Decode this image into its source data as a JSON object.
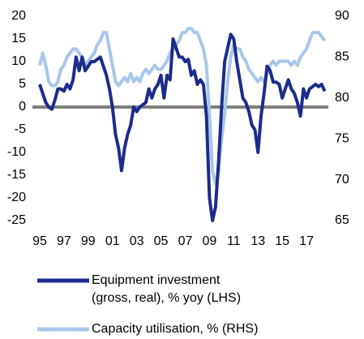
{
  "chart_data": {
    "type": "line",
    "x": [
      1995,
      1995.25,
      1995.5,
      1995.75,
      1996,
      1996.25,
      1996.5,
      1996.75,
      1997,
      1997.25,
      1997.5,
      1997.75,
      1998,
      1998.25,
      1998.5,
      1998.75,
      1999,
      1999.25,
      1999.5,
      1999.75,
      2000,
      2000.25,
      2000.5,
      2000.75,
      2001,
      2001.25,
      2001.5,
      2001.75,
      2002,
      2002.25,
      2002.5,
      2002.75,
      2003,
      2003.25,
      2003.5,
      2003.75,
      2004,
      2004.25,
      2004.5,
      2004.75,
      2005,
      2005.25,
      2005.5,
      2005.75,
      2006,
      2006.25,
      2006.5,
      2006.75,
      2007,
      2007.25,
      2007.5,
      2007.75,
      2008,
      2008.25,
      2008.5,
      2008.75,
      2009,
      2009.25,
      2009.5,
      2009.75,
      2010,
      2010.25,
      2010.5,
      2010.75,
      2011,
      2011.25,
      2011.5,
      2011.75,
      2012,
      2012.25,
      2012.5,
      2012.75,
      2013,
      2013.25,
      2013.5,
      2013.75,
      2014,
      2014.25,
      2014.5,
      2014.75,
      2015,
      2015.25,
      2015.5,
      2015.75,
      2016,
      2016.25,
      2016.5,
      2016.75,
      2017,
      2017.25,
      2017.5,
      2017.75,
      2018,
      2018.25,
      2018.5
    ],
    "series": [
      {
        "name": "Equipment investment\n(gross, real), % yoy (LHS)",
        "color": "#1c2c8c",
        "axis": "y",
        "values": [
          5,
          3,
          1,
          0,
          -0.5,
          1.5,
          4,
          4,
          3.5,
          5,
          4,
          6,
          11,
          8,
          11,
          8,
          9,
          10,
          10,
          10.5,
          11,
          9,
          7,
          4,
          0,
          -6,
          -9,
          -14,
          -9,
          -6,
          -4,
          0,
          -1,
          0,
          0.5,
          1,
          4,
          2,
          4,
          5,
          7,
          2,
          7,
          6,
          15,
          13,
          11,
          11,
          10,
          10.5,
          7,
          8,
          5,
          6,
          5,
          -2,
          -20,
          -25,
          -22,
          -12,
          0,
          10,
          13,
          16,
          15,
          10,
          6,
          2,
          1,
          -1,
          -4,
          -5,
          -10,
          -2,
          3,
          9,
          8,
          5.5,
          5.5,
          5,
          2,
          4,
          6,
          4,
          3,
          1,
          -2,
          4,
          2,
          4,
          4.5,
          5,
          4.5,
          5,
          3.5
        ]
      },
      {
        "name": "Capacity utilisation, % (RHS)",
        "color": "#a9c7ea",
        "axis": "y2",
        "values": [
          84,
          85.5,
          84,
          82,
          81.5,
          81.5,
          82,
          83.5,
          84,
          85,
          85.5,
          86,
          86,
          85.5,
          85,
          84,
          84.5,
          85,
          85.5,
          86.5,
          87,
          88,
          88,
          86,
          84,
          82,
          81.5,
          82,
          82.5,
          82,
          83,
          82,
          82.5,
          82,
          83,
          83.5,
          83,
          83.5,
          84,
          83.5,
          83.5,
          84,
          84.5,
          85.5,
          86,
          86.5,
          87,
          88,
          88,
          88.5,
          88.5,
          88,
          88,
          87,
          86,
          84,
          78,
          71,
          69.5,
          71,
          75,
          78,
          82,
          85,
          86.5,
          86,
          86,
          85,
          84.5,
          83.5,
          83,
          82.5,
          82,
          82.5,
          82,
          83,
          84,
          84.5,
          84,
          84.5,
          84.5,
          84.5,
          84.5,
          84,
          84.5,
          84,
          85,
          85.5,
          86,
          87,
          88,
          88,
          88,
          87.5,
          87
        ]
      }
    ],
    "xlim": [
      1994.4,
      2018.8
    ],
    "xticks": [
      {
        "value": 1995,
        "label": "95"
      },
      {
        "value": 1997,
        "label": "97"
      },
      {
        "value": 1999,
        "label": "99"
      },
      {
        "value": 2001,
        "label": "01"
      },
      {
        "value": 2003,
        "label": "03"
      },
      {
        "value": 2005,
        "label": "05"
      },
      {
        "value": 2007,
        "label": "07"
      },
      {
        "value": 2009,
        "label": "09"
      },
      {
        "value": 2011,
        "label": "11"
      },
      {
        "value": 2013,
        "label": "13"
      },
      {
        "value": 2015,
        "label": "15"
      },
      {
        "value": 2017,
        "label": "17"
      }
    ],
    "ylim": [
      -25,
      20
    ],
    "yticks": [
      20,
      15,
      10,
      5,
      0,
      -5,
      -10,
      -15,
      -20,
      -25
    ],
    "y2lim": [
      65,
      90
    ],
    "y2ticks": [
      90,
      85,
      80,
      75,
      70,
      65
    ],
    "zero_line_color": "#808080"
  }
}
